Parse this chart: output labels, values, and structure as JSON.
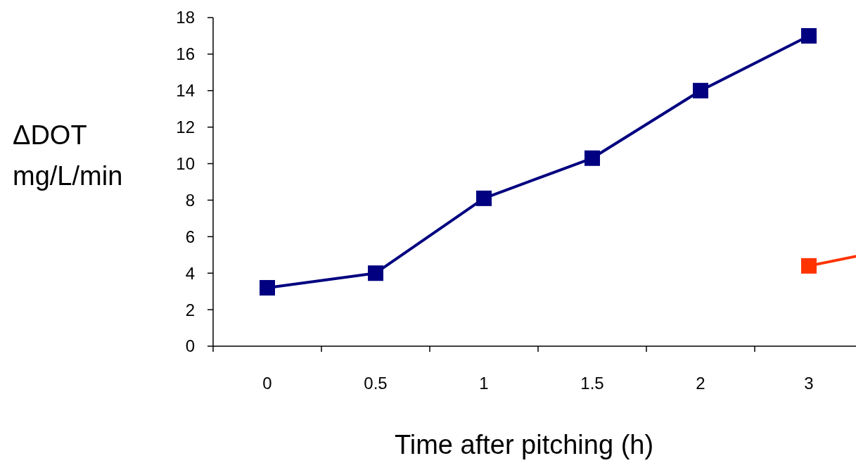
{
  "chart_data": {
    "type": "line",
    "xlabel": "Time after pitching (h)",
    "ylabel": "ΔDOT\nmg/L/min",
    "categories": [
      "0",
      "0.5",
      "1",
      "1.5",
      "2",
      "3",
      null
    ],
    "ylim": [
      0,
      18
    ],
    "yticks": [
      0,
      2,
      4,
      6,
      8,
      10,
      12,
      14,
      16,
      18
    ],
    "marker": "square",
    "line_style": "solid",
    "series": [
      {
        "color": "#000080",
        "values": [
          3.2,
          4.0,
          8.1,
          10.3,
          14.0,
          17.0,
          null
        ]
      },
      {
        "color": "#ff3300",
        "values": [
          null,
          null,
          null,
          null,
          null,
          4.4,
          5.6
        ]
      }
    ]
  }
}
